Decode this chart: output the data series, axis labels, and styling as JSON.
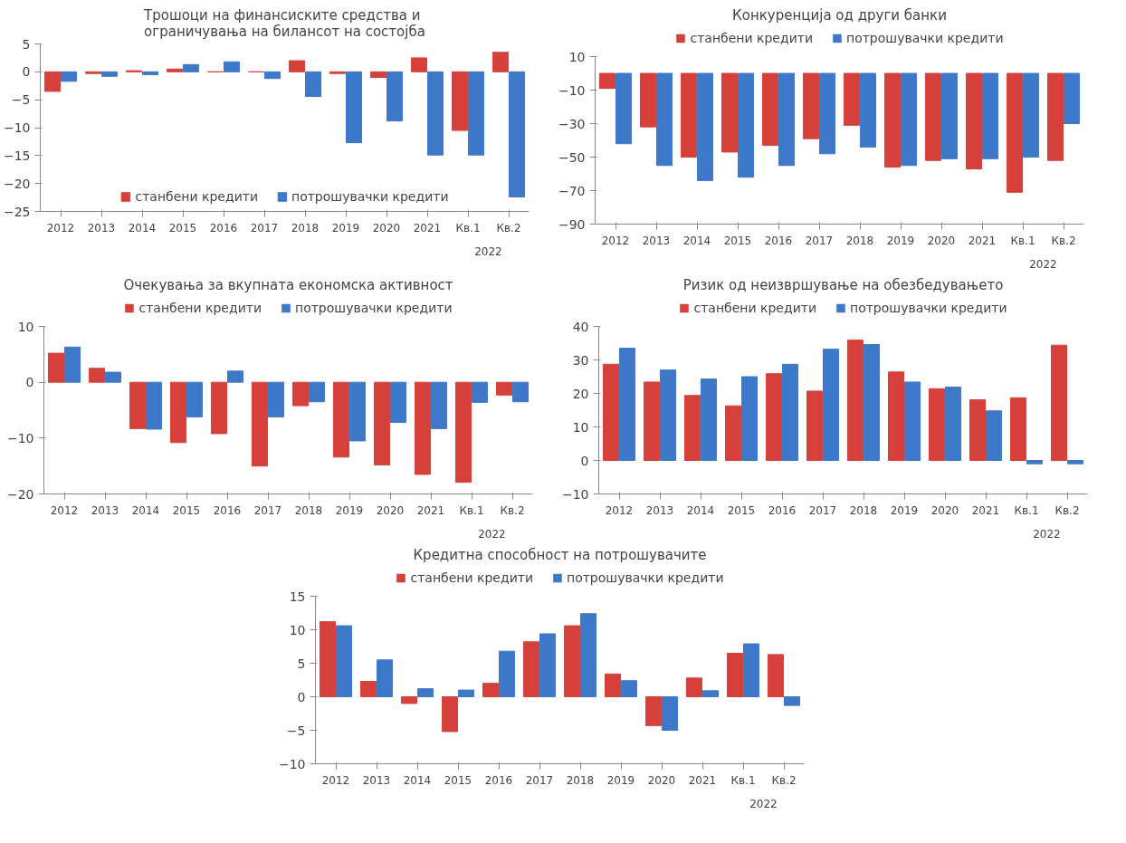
{
  "chart_data": [
    {
      "type": "bar",
      "title": "Трошоци на финансиските средства и\nограничувања на билансот на состојба",
      "categories": [
        "2012",
        "2013",
        "2014",
        "2015",
        "2016",
        "2017",
        "2018",
        "2019",
        "2020",
        "2021",
        "Кв.1",
        "Кв.2"
      ],
      "annotations": [
        "2022"
      ],
      "ylim": [
        -25,
        5
      ],
      "yticks": [
        -25,
        -20,
        -15,
        -10,
        -5,
        0,
        5
      ],
      "grid": false,
      "legend": "bottom",
      "series": [
        {
          "name": "станбени кредити",
          "color": "#d5403b",
          "values": [
            -3.5,
            -0.3,
            0.2,
            0.5,
            0,
            0,
            2,
            -0.3,
            -1,
            2.5,
            -10.5,
            3.5
          ]
        },
        {
          "name": "потрошувачки кредити",
          "color": "#3d78c9",
          "values": [
            -1.7,
            -0.8,
            -0.5,
            1.3,
            1.8,
            -1.2,
            -4.4,
            -12.7,
            -8.8,
            -14.9,
            -14.9,
            -22.4
          ]
        }
      ]
    },
    {
      "type": "bar",
      "title": "Конкуренција од други банки",
      "categories": [
        "2012",
        "2013",
        "2014",
        "2015",
        "2016",
        "2017",
        "2018",
        "2019",
        "2020",
        "2021",
        "Кв.1",
        "Кв.2"
      ],
      "annotations": [
        "2022"
      ],
      "ylim": [
        -90,
        10
      ],
      "yticks": [
        -90,
        -70,
        -50,
        -30,
        -10,
        10
      ],
      "grid": false,
      "legend": "top",
      "series": [
        {
          "name": "станбени кредити",
          "color": "#d5403b",
          "values": [
            -9,
            -32,
            -50,
            -47,
            -43,
            -39,
            -31,
            -56,
            -52,
            -57,
            -71,
            -52
          ]
        },
        {
          "name": "потрошувачки кредити",
          "color": "#3d78c9",
          "values": [
            -42,
            -55,
            -64,
            -62,
            -55,
            -48,
            -44,
            -55,
            -51,
            -51,
            -50,
            -30
          ]
        }
      ]
    },
    {
      "type": "bar",
      "title": "Очекувања за вкупната економска активност",
      "categories": [
        "2012",
        "2013",
        "2014",
        "2015",
        "2016",
        "2017",
        "2018",
        "2019",
        "2020",
        "2021",
        "Кв.1",
        "Кв.2"
      ],
      "annotations": [
        "2022"
      ],
      "ylim": [
        -20,
        10
      ],
      "yticks": [
        -20,
        -10,
        0,
        10
      ],
      "grid": false,
      "legend": "top",
      "series": [
        {
          "name": "станбени кредити",
          "color": "#d5403b",
          "values": [
            5.2,
            2.5,
            -8.3,
            -10.8,
            -9.2,
            -15,
            -4.2,
            -13.4,
            -14.8,
            -16.5,
            -17.9,
            -2.3
          ]
        },
        {
          "name": "потрошувачки кредити",
          "color": "#3d78c9",
          "values": [
            6.3,
            1.8,
            -8.4,
            -6.2,
            2,
            -6.2,
            -3.5,
            -10.5,
            -7.2,
            -8.3,
            -3.6,
            -3.5
          ]
        }
      ]
    },
    {
      "type": "bar",
      "title": "Ризик од неизвршување на обезбедувањето",
      "categories": [
        "2012",
        "2013",
        "2014",
        "2015",
        "2016",
        "2017",
        "2018",
        "2019",
        "2020",
        "2021",
        "Кв.1",
        "Кв.2"
      ],
      "annotations": [
        "2022"
      ],
      "ylim": [
        -10,
        40
      ],
      "yticks": [
        -10,
        0,
        10,
        20,
        30,
        40
      ],
      "grid": false,
      "legend": "top",
      "series": [
        {
          "name": "станбени кредити",
          "color": "#d5403b",
          "values": [
            28.7,
            23.4,
            19.4,
            16.3,
            25.9,
            20.7,
            35.9,
            26.4,
            21.4,
            18.1,
            18.7,
            34.4
          ]
        },
        {
          "name": "потрошувачки кредити",
          "color": "#3d78c9",
          "values": [
            33.5,
            27,
            24.3,
            25,
            28.7,
            33.2,
            34.6,
            23.4,
            21.9,
            14.8,
            -1,
            -1
          ]
        }
      ]
    },
    {
      "type": "bar",
      "title": "Кредитна способност на потрошувачите",
      "categories": [
        "2012",
        "2013",
        "2014",
        "2015",
        "2016",
        "2017",
        "2018",
        "2019",
        "2020",
        "2021",
        "Кв.1",
        "Кв.2"
      ],
      "annotations": [
        "2022"
      ],
      "ylim": [
        -10,
        15
      ],
      "yticks": [
        -10,
        -5,
        0,
        5,
        10,
        15
      ],
      "grid": false,
      "legend": "top",
      "series": [
        {
          "name": "станбени кредити",
          "color": "#d5403b",
          "values": [
            11.2,
            2.3,
            -1,
            -5.2,
            2,
            8.2,
            10.6,
            3.4,
            -4.3,
            2.8,
            6.5,
            6.3
          ]
        },
        {
          "name": "потрошувачки кредити",
          "color": "#3d78c9",
          "values": [
            10.6,
            5.5,
            1.2,
            1,
            6.8,
            9.4,
            12.4,
            2.4,
            -5,
            0.9,
            7.9,
            -1.3
          ]
        }
      ]
    }
  ]
}
